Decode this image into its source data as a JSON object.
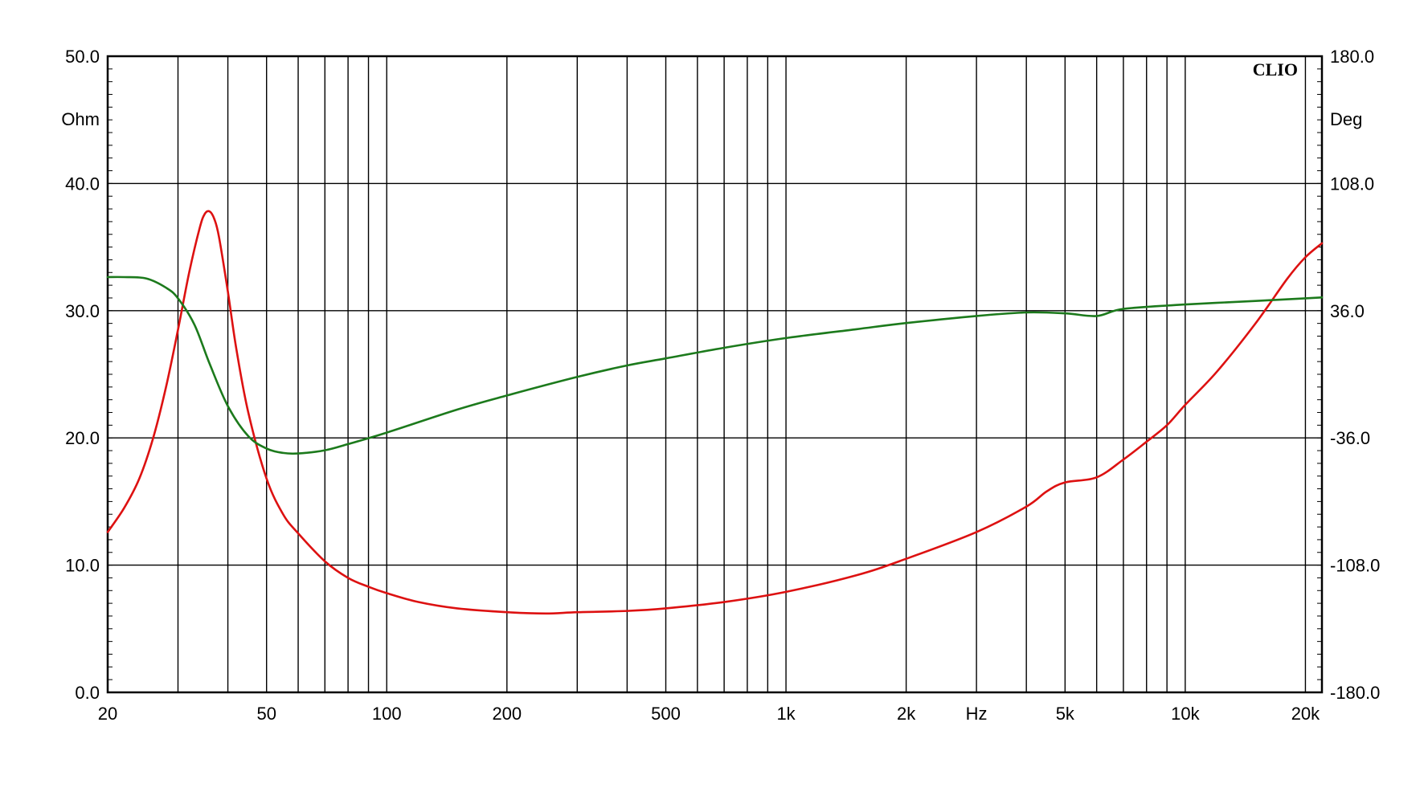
{
  "chart_data": {
    "type": "line",
    "brand": "CLIO",
    "x_unit_label": "Hz",
    "x_scale": "log",
    "xlim": [
      20,
      22000
    ],
    "x_tick_values": [
      20,
      50,
      100,
      200,
      500,
      1000,
      2000,
      5000,
      10000,
      20000
    ],
    "x_tick_labels": [
      "20",
      "50",
      "100",
      "200",
      "500",
      "1k",
      "2k",
      "5k",
      "10k",
      "20k"
    ],
    "x_unit_position_value": 3000,
    "y_left": {
      "unit": "Ohm",
      "ylim": [
        0,
        50
      ],
      "ticks": [
        0,
        10,
        20,
        30,
        40,
        50
      ],
      "tick_labels": [
        "0.0",
        "10.0",
        "20.0",
        "30.0",
        "40.0",
        "50.0"
      ]
    },
    "y_right": {
      "unit": "Deg",
      "ylim": [
        -180,
        180
      ],
      "ticks": [
        -180,
        -108,
        -36,
        36,
        108,
        180
      ],
      "tick_labels": [
        "-180.0",
        "-108.0",
        "-36.0",
        "36.0",
        "108.0",
        "180.0"
      ]
    },
    "grid": true,
    "series": [
      {
        "color": "#dd1111",
        "axis": "left",
        "points": [
          [
            20,
            12.6
          ],
          [
            22,
            14.5
          ],
          [
            24,
            16.8
          ],
          [
            26,
            20.0
          ],
          [
            28,
            24.0
          ],
          [
            30,
            28.5
          ],
          [
            32,
            33.0
          ],
          [
            34,
            36.5
          ],
          [
            35,
            37.6
          ],
          [
            36,
            37.8
          ],
          [
            37,
            37.2
          ],
          [
            38,
            35.8
          ],
          [
            40,
            31.5
          ],
          [
            42,
            27.0
          ],
          [
            45,
            22.0
          ],
          [
            50,
            16.8
          ],
          [
            55,
            14.0
          ],
          [
            60,
            12.5
          ],
          [
            70,
            10.3
          ],
          [
            80,
            9.0
          ],
          [
            90,
            8.3
          ],
          [
            100,
            7.8
          ],
          [
            120,
            7.1
          ],
          [
            150,
            6.6
          ],
          [
            200,
            6.3
          ],
          [
            250,
            6.2
          ],
          [
            300,
            6.3
          ],
          [
            400,
            6.4
          ],
          [
            500,
            6.6
          ],
          [
            700,
            7.1
          ],
          [
            1000,
            7.9
          ],
          [
            1500,
            9.2
          ],
          [
            2000,
            10.5
          ],
          [
            3000,
            12.6
          ],
          [
            4000,
            14.6
          ],
          [
            4500,
            15.8
          ],
          [
            5000,
            16.5
          ],
          [
            6000,
            16.9
          ],
          [
            7000,
            18.3
          ],
          [
            8000,
            19.7
          ],
          [
            9000,
            21.0
          ],
          [
            10000,
            22.6
          ],
          [
            12000,
            25.2
          ],
          [
            15000,
            29.0
          ],
          [
            18000,
            32.5
          ],
          [
            20000,
            34.2
          ],
          [
            22000,
            35.3
          ]
        ]
      },
      {
        "color": "#1c7a1c",
        "axis": "right",
        "points": [
          [
            20,
            55.0
          ],
          [
            22,
            55.0
          ],
          [
            25,
            54.2
          ],
          [
            28,
            49.0
          ],
          [
            30,
            43.0
          ],
          [
            33,
            28.0
          ],
          [
            36,
            6.0
          ],
          [
            40,
            -18.0
          ],
          [
            45,
            -35.0
          ],
          [
            50,
            -42.0
          ],
          [
            55,
            -44.5
          ],
          [
            60,
            -44.8
          ],
          [
            70,
            -43.0
          ],
          [
            80,
            -39.5
          ],
          [
            100,
            -33.0
          ],
          [
            150,
            -20.0
          ],
          [
            200,
            -12.0
          ],
          [
            300,
            -1.5
          ],
          [
            400,
            5.0
          ],
          [
            500,
            9.0
          ],
          [
            700,
            15.0
          ],
          [
            1000,
            20.5
          ],
          [
            1500,
            25.5
          ],
          [
            2000,
            29.0
          ],
          [
            3000,
            33.0
          ],
          [
            4000,
            35.0
          ],
          [
            5000,
            34.5
          ],
          [
            6000,
            33.0
          ],
          [
            7000,
            37.0
          ],
          [
            10000,
            39.5
          ],
          [
            15000,
            41.5
          ],
          [
            20000,
            43.0
          ],
          [
            22000,
            43.5
          ]
        ]
      }
    ]
  }
}
